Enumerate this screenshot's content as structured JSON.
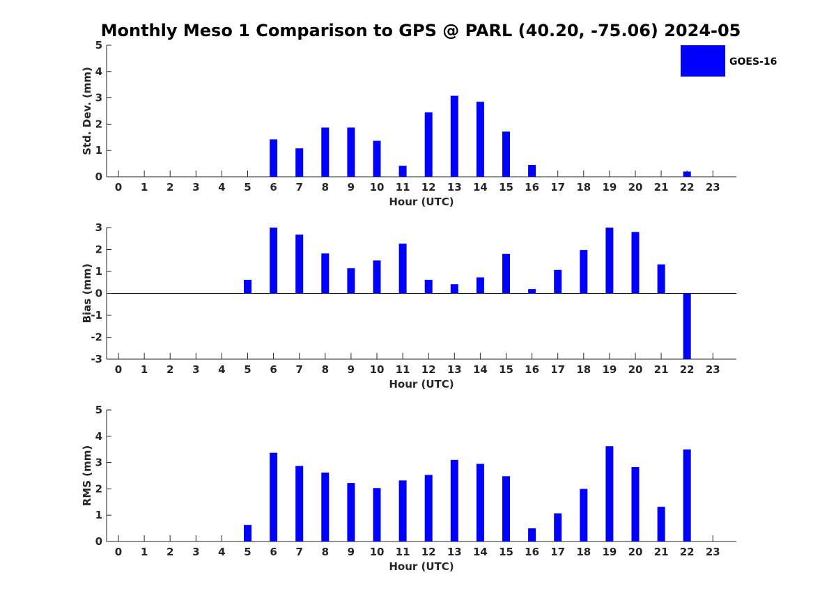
{
  "chart_data": [
    {
      "type": "bar",
      "title": "Monthly Meso 1 Comparison to GPS @ PARL (40.20, -75.06) 2024-05",
      "xlabel": "Hour (UTC)",
      "ylabel": "Std. Dev. (mm)",
      "ylim": [
        0,
        5
      ],
      "yticks": [
        "0",
        "1",
        "2",
        "3",
        "4",
        "5"
      ],
      "categories": [
        "0",
        "1",
        "2",
        "3",
        "4",
        "5",
        "6",
        "7",
        "8",
        "9",
        "10",
        "11",
        "12",
        "13",
        "14",
        "15",
        "16",
        "17",
        "18",
        "19",
        "20",
        "21",
        "22",
        "23"
      ],
      "series": [
        {
          "name": "GOES-16",
          "color": "#0000ff",
          "values": [
            0,
            0,
            0,
            0,
            0,
            0,
            1.42,
            1.08,
            1.87,
            1.87,
            1.37,
            0.42,
            2.45,
            3.08,
            2.85,
            1.72,
            0.45,
            0,
            0,
            0,
            0,
            0,
            0.2,
            0
          ]
        }
      ],
      "legend": {
        "label": "GOES-16",
        "position": "top-right"
      }
    },
    {
      "type": "bar",
      "xlabel": "Hour (UTC)",
      "ylabel": "Bias (mm)",
      "ylim": [
        -3,
        3
      ],
      "yticks": [
        "-3",
        "-2",
        "-1",
        "0",
        "1",
        "2",
        "3"
      ],
      "categories": [
        "0",
        "1",
        "2",
        "3",
        "4",
        "5",
        "6",
        "7",
        "8",
        "9",
        "10",
        "11",
        "12",
        "13",
        "14",
        "15",
        "16",
        "17",
        "18",
        "19",
        "20",
        "21",
        "22",
        "23"
      ],
      "series": [
        {
          "name": "GOES-16",
          "color": "#0000ff",
          "values": [
            0,
            0,
            0,
            0,
            0,
            0.62,
            3.0,
            2.68,
            1.82,
            1.15,
            1.5,
            2.27,
            0.62,
            0.42,
            0.73,
            1.8,
            0.2,
            1.07,
            1.98,
            3.0,
            2.8,
            1.32,
            -3.0,
            0
          ]
        }
      ]
    },
    {
      "type": "bar",
      "xlabel": "Hour (UTC)",
      "ylabel": "RMS (mm)",
      "ylim": [
        0,
        5
      ],
      "yticks": [
        "0",
        "1",
        "2",
        "3",
        "4",
        "5"
      ],
      "categories": [
        "0",
        "1",
        "2",
        "3",
        "4",
        "5",
        "6",
        "7",
        "8",
        "9",
        "10",
        "11",
        "12",
        "13",
        "14",
        "15",
        "16",
        "17",
        "18",
        "19",
        "20",
        "21",
        "22",
        "23"
      ],
      "series": [
        {
          "name": "GOES-16",
          "color": "#0000ff",
          "values": [
            0,
            0,
            0,
            0,
            0,
            0.63,
            3.37,
            2.87,
            2.62,
            2.22,
            2.03,
            2.32,
            2.53,
            3.1,
            2.95,
            2.48,
            0.5,
            1.07,
            2.0,
            3.62,
            2.83,
            1.32,
            3.5,
            0
          ]
        }
      ]
    }
  ]
}
